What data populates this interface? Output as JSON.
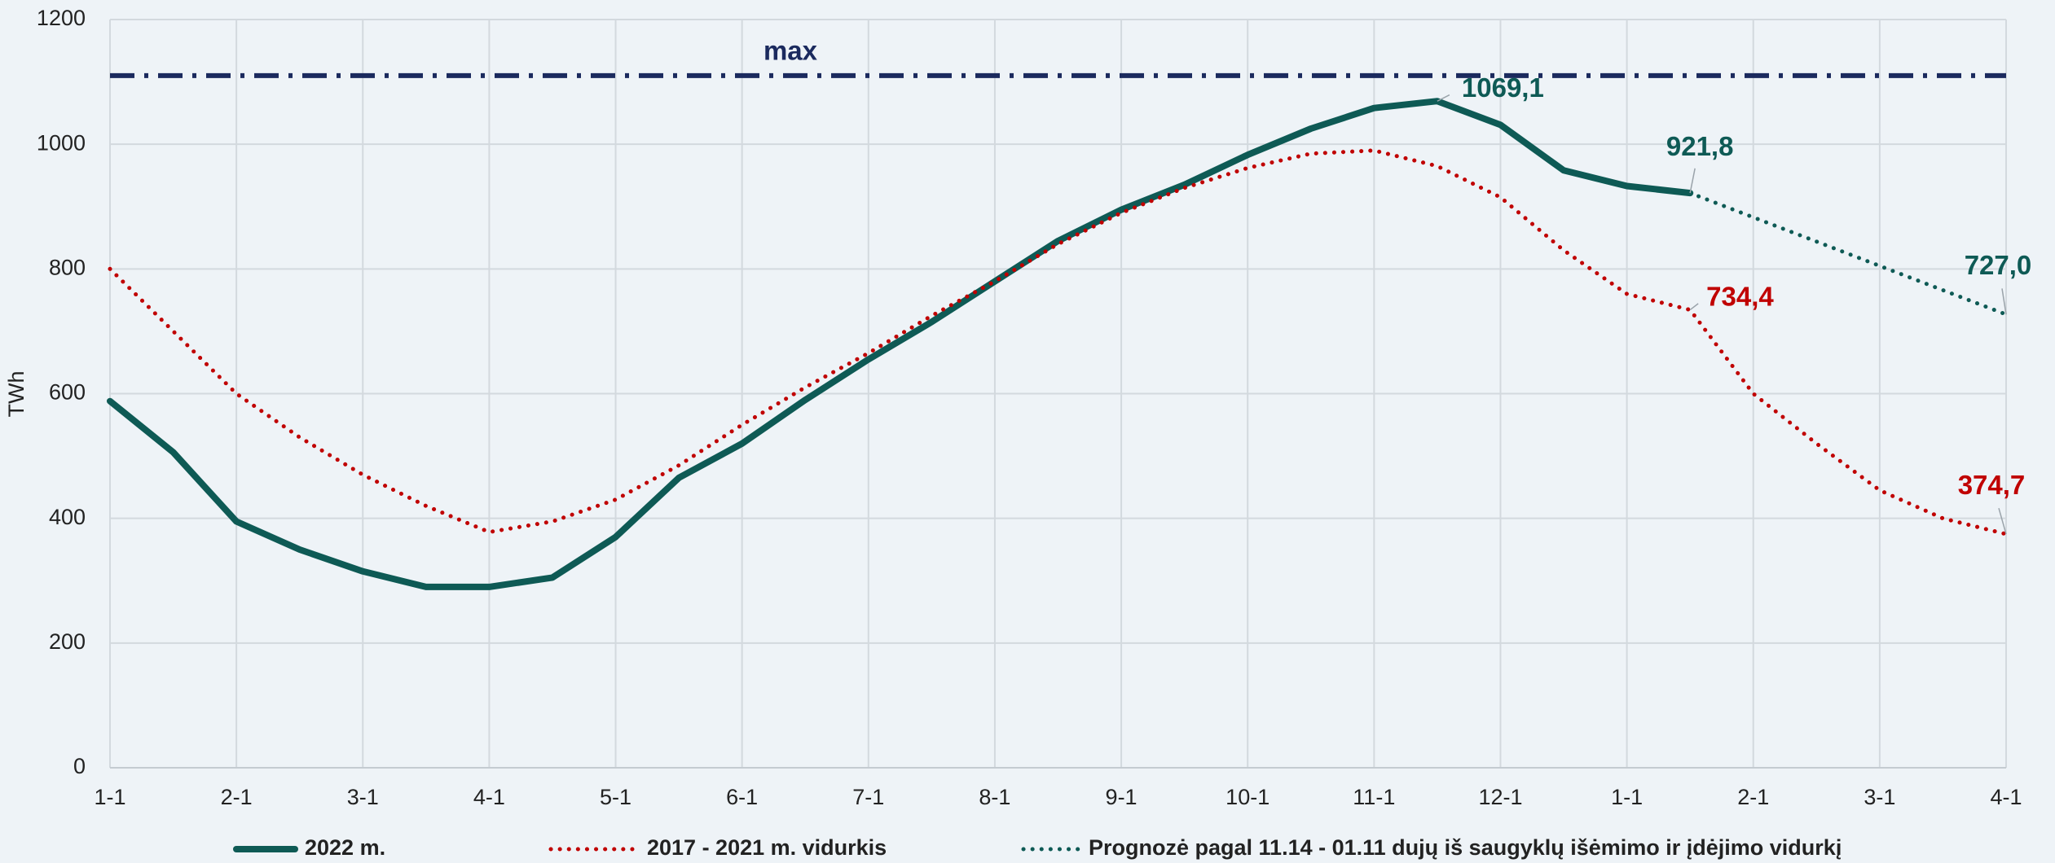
{
  "chart_data": {
    "type": "line",
    "y_label": "TWh",
    "categories": [
      "1-1",
      null,
      "2-1",
      null,
      "3-1",
      null,
      "4-1",
      null,
      "5-1",
      null,
      "6-1",
      null,
      "7-1",
      null,
      "8-1",
      null,
      "9-1",
      null,
      "10-1",
      null,
      "11-1",
      null,
      "12-1",
      null,
      "1-1",
      null,
      "2-1",
      null,
      "3-1",
      null,
      "4-1"
    ],
    "series": [
      {
        "name": "2022 m.",
        "color": "#0e5a55",
        "style": "solid",
        "values": [
          588,
          506,
          395,
          350,
          315,
          290,
          290,
          305,
          370,
          465,
          520,
          590,
          655,
          715,
          780,
          845,
          895,
          935,
          983,
          1025,
          1058,
          1069.1,
          1031,
          958,
          933,
          921.8,
          null,
          null,
          null,
          null,
          null
        ],
        "value_labels": [
          null,
          null,
          null,
          null,
          null,
          null,
          null,
          null,
          null,
          null,
          null,
          null,
          null,
          null,
          null,
          null,
          null,
          null,
          null,
          null,
          null,
          "1069,1",
          null,
          null,
          null,
          "921,8",
          null,
          null,
          null,
          null,
          null
        ]
      },
      {
        "name": "2017 - 2021 m. vidurkis",
        "color": "#c00000",
        "style": "dotted",
        "values": [
          800,
          700,
          600,
          530,
          470,
          420,
          378,
          395,
          430,
          485,
          550,
          610,
          665,
          725,
          780,
          840,
          890,
          930,
          962,
          985,
          990,
          965,
          915,
          830,
          760,
          734.4,
          600,
          520,
          445,
          400,
          374.7
        ],
        "value_labels": [
          null,
          null,
          null,
          null,
          null,
          null,
          null,
          null,
          null,
          null,
          null,
          null,
          null,
          null,
          null,
          null,
          null,
          null,
          null,
          null,
          null,
          null,
          null,
          null,
          null,
          "734,4",
          null,
          null,
          null,
          null,
          "374,7"
        ]
      },
      {
        "name": "Prognozė pagal 11.14 - 01.11 dujų iš saugyklų išėmimo ir įdėjimo vidurkį",
        "color": "#0e5a55",
        "style": "dotted",
        "values": [
          null,
          null,
          null,
          null,
          null,
          null,
          null,
          null,
          null,
          null,
          null,
          null,
          null,
          null,
          null,
          null,
          null,
          null,
          null,
          null,
          null,
          null,
          null,
          null,
          null,
          921.8,
          882.8,
          843.9,
          804.9,
          766.0,
          727.0
        ],
        "value_labels": [
          null,
          null,
          null,
          null,
          null,
          null,
          null,
          null,
          null,
          null,
          null,
          null,
          null,
          null,
          null,
          null,
          null,
          null,
          null,
          null,
          null,
          null,
          null,
          null,
          null,
          null,
          null,
          null,
          null,
          null,
          "727,0"
        ]
      }
    ],
    "max_line": {
      "label": "max",
      "value": 1110,
      "color": "#1b2a5e"
    },
    "ylim": [
      0,
      1200
    ],
    "yticks": [
      0,
      200,
      400,
      600,
      800,
      1000,
      1200
    ],
    "grid": true,
    "legend": "bottom"
  }
}
